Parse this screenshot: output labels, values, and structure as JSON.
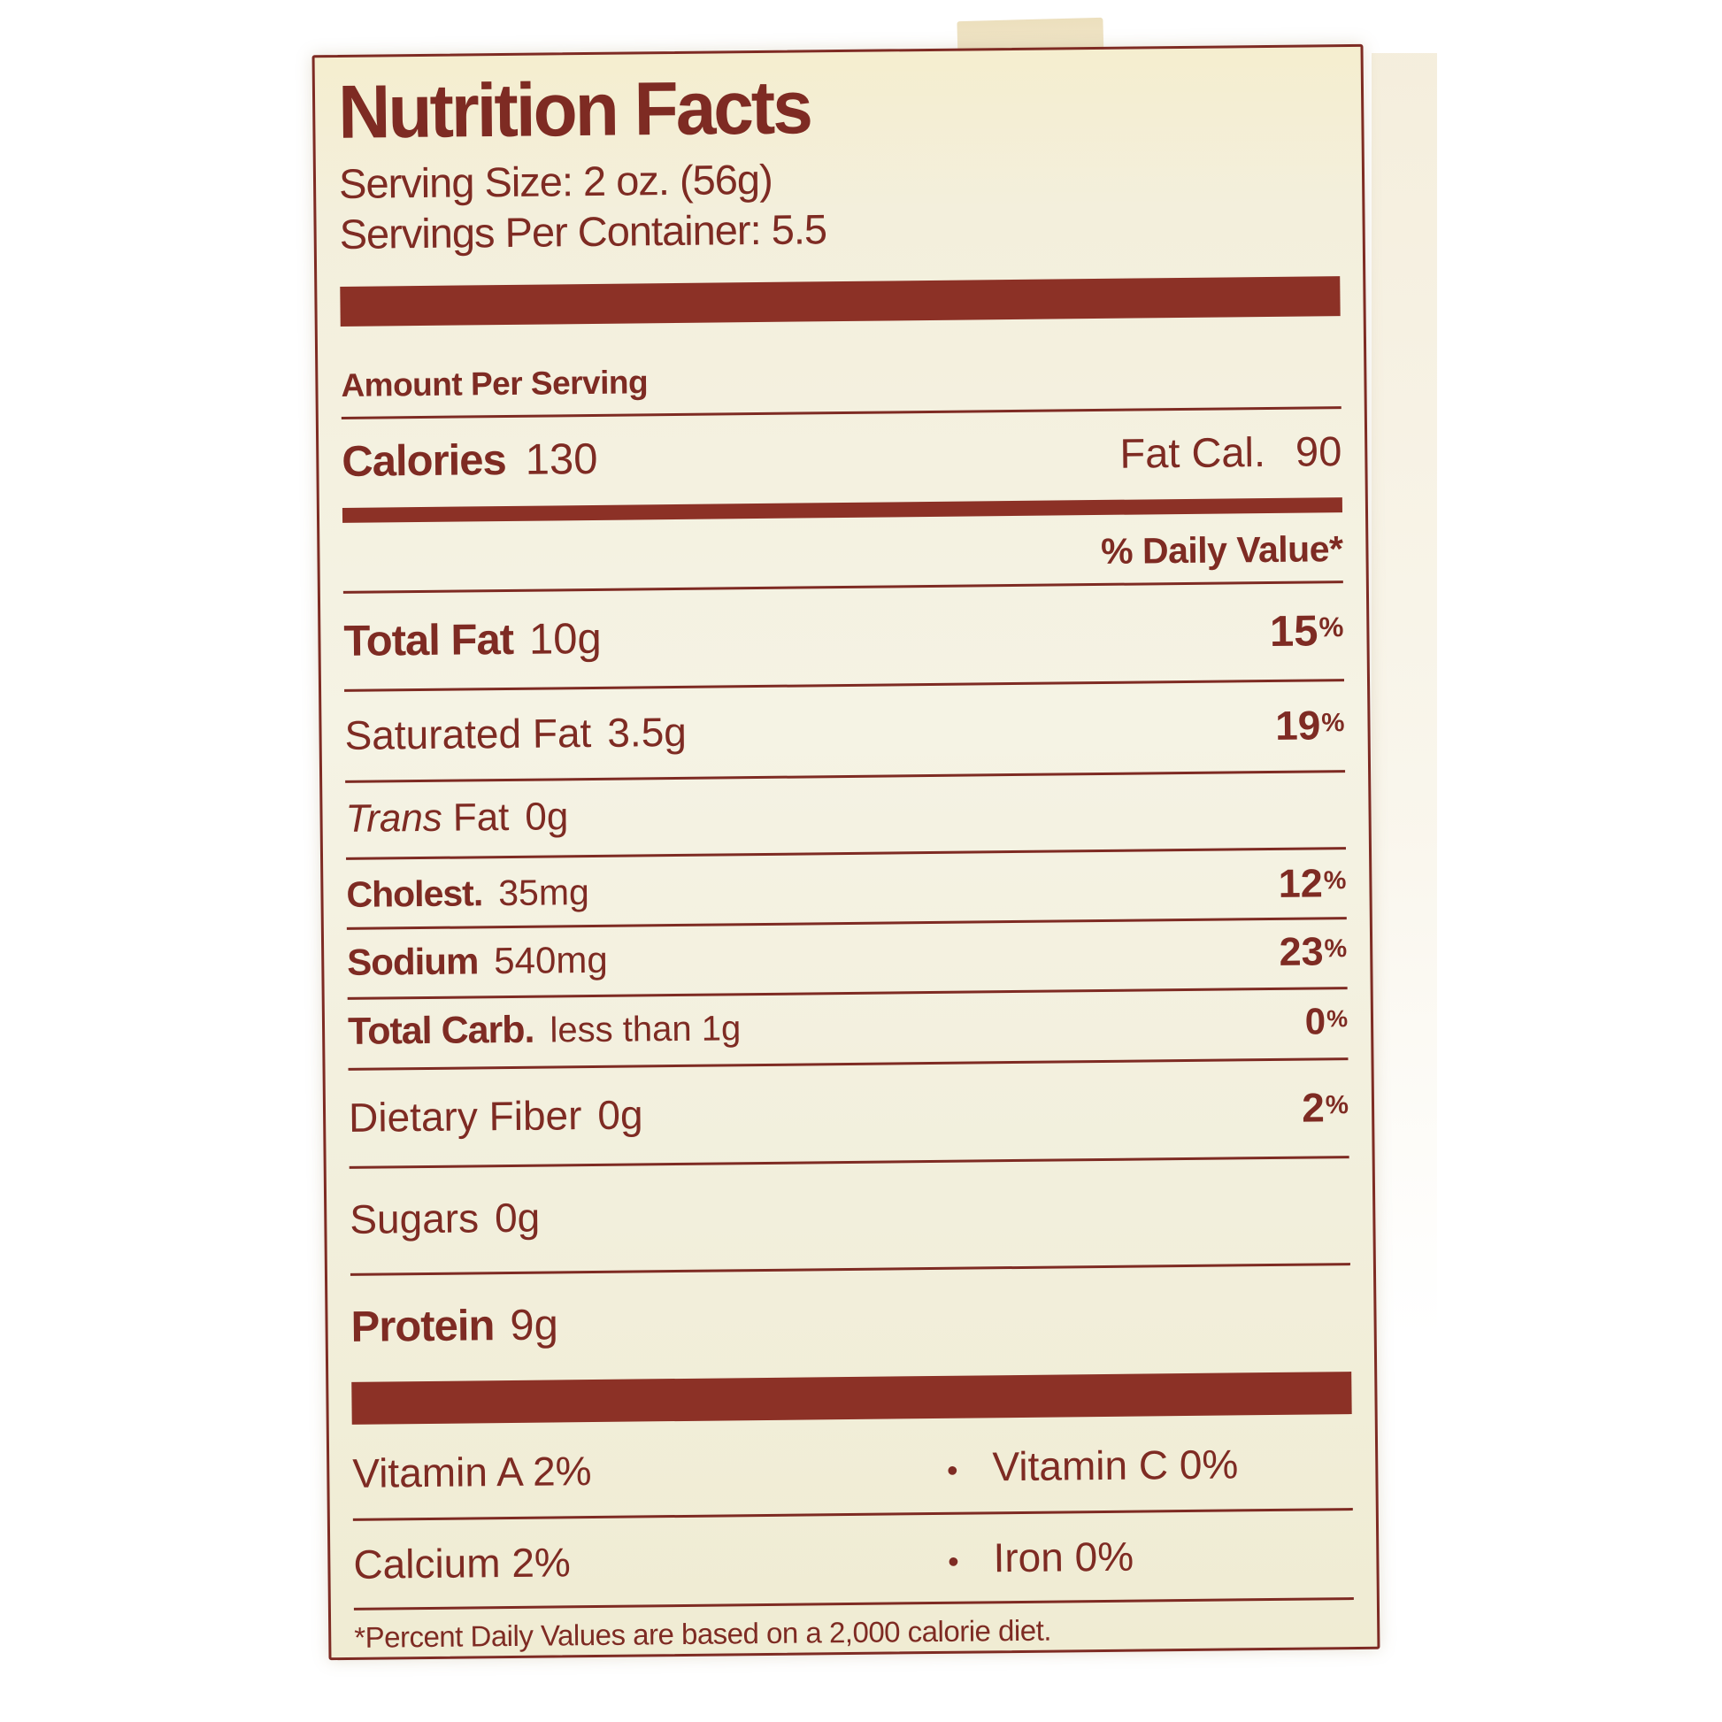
{
  "label": {
    "title": "Nutrition Facts",
    "serving_size": "Serving Size: 2 oz. (56g)",
    "servings_per_container": "Servings Per Container: 5.5",
    "amount_per_serving": "Amount Per Serving",
    "calories": {
      "label": "Calories",
      "value": "130"
    },
    "fat_calories": {
      "label": "Fat Cal.",
      "value": "90"
    },
    "daily_value_header": "% Daily Value*",
    "percent_sign": "%",
    "total_fat": {
      "label": "Total Fat",
      "value": "10g",
      "dv": "15"
    },
    "saturated_fat": {
      "label": "Saturated Fat",
      "value": "3.5g",
      "dv": "19"
    },
    "trans_fat": {
      "label_italic": "Trans",
      "label_rest": "Fat",
      "value": "0g"
    },
    "cholesterol": {
      "label": "Cholest.",
      "value": "35mg",
      "dv": "12"
    },
    "sodium": {
      "label": "Sodium",
      "value": "540mg",
      "dv": "23"
    },
    "total_carb": {
      "label": "Total Carb.",
      "value": "less than 1g",
      "dv": "0"
    },
    "dietary_fiber": {
      "label": "Dietary Fiber",
      "value": "0g",
      "dv": "2"
    },
    "sugars": {
      "label": "Sugars",
      "value": "0g"
    },
    "protein": {
      "label": "Protein",
      "value": "9g"
    },
    "vitamins": {
      "bullet": "•",
      "vitamin_a": "Vitamin A 2%",
      "vitamin_c": "Vitamin C 0%",
      "calcium": "Calcium 2%",
      "iron": "Iron 0%"
    },
    "footnote": "*Percent Daily Values are based on a 2,000 calorie diet.",
    "colors": {
      "ink": "#7e2b23",
      "bar": "#8c3126",
      "label_background": "#f3efdc",
      "photo_background": "#ffffff"
    }
  }
}
